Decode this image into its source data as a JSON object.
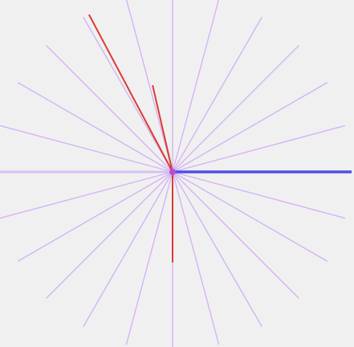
{
  "colors": {
    "background": "#f0f0f0",
    "ray": "#d3b4f4",
    "horizontal_ray": "#d9c0f8",
    "reference_line": "#4f4fe6",
    "hand": "#dd3b33",
    "center": "#b24fd8"
  },
  "dial": {
    "ray_count": 24,
    "ray_step_degrees": 15
  },
  "lines": {
    "reference": {
      "angle_degrees": 0
    },
    "hands": [
      {
        "name": "long-hand",
        "angle_degrees": 118
      },
      {
        "name": "short-hand",
        "angle_degrees": 103
      },
      {
        "name": "down-hand",
        "angle_degrees": 270
      }
    ]
  }
}
